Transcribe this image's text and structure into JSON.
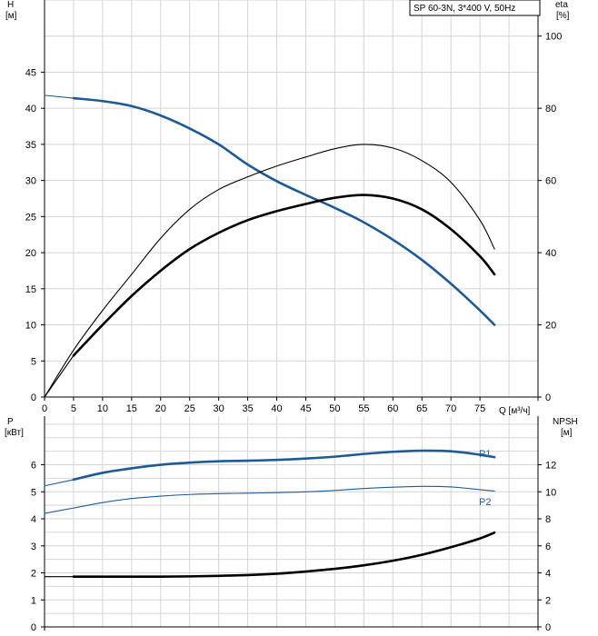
{
  "legend": {
    "text": "SP 60-3N, 3*400 V, 50Hz"
  },
  "x_axis": {
    "label": "Q [м³/ч]",
    "range": [
      0,
      85
    ],
    "ticks": [
      0,
      5,
      10,
      15,
      20,
      25,
      30,
      35,
      40,
      45,
      50,
      55,
      60,
      65,
      70,
      75
    ]
  },
  "top_panel": {
    "left_axis": {
      "label_name": "H",
      "label_unit": "[м]",
      "range": [
        0,
        55
      ],
      "ticks": [
        0,
        5,
        10,
        15,
        20,
        25,
        30,
        35,
        40,
        45
      ]
    },
    "right_axis": {
      "label_name": "eta",
      "label_unit": "[%]",
      "range": [
        0,
        110
      ],
      "ticks": [
        0,
        20,
        40,
        60,
        80,
        100
      ]
    }
  },
  "bottom_panel": {
    "left_axis": {
      "label_name": "P",
      "label_unit": "[кВт]",
      "range": [
        0,
        7.8
      ],
      "ticks": [
        0,
        1,
        2,
        3,
        4,
        5,
        6
      ]
    },
    "right_axis": {
      "label_name": "NPSH",
      "label_unit": "[м]",
      "range": [
        0,
        15.6
      ],
      "ticks": [
        0,
        2,
        4,
        6,
        8,
        10,
        12
      ]
    }
  },
  "colors": {
    "pump_curve": "#1f5a94",
    "efficiency": "#000000",
    "grid": "#d4d4d4"
  },
  "chart_data": [
    {
      "type": "line",
      "panel": "top",
      "series": [
        {
          "axis": "H",
          "style": "thin",
          "values": [
            [
              0,
              41.8
            ],
            [
              5,
              41.4
            ]
          ]
        },
        {
          "axis": "H",
          "style": "thick",
          "values": [
            [
              5,
              41.4
            ],
            [
              10,
              41
            ],
            [
              15,
              40.3
            ],
            [
              20,
              39
            ],
            [
              25,
              37.2
            ],
            [
              30,
              35
            ],
            [
              35,
              32.2
            ],
            [
              40,
              29.9
            ],
            [
              45,
              28
            ],
            [
              50,
              26.2
            ],
            [
              55,
              24.2
            ],
            [
              60,
              21.8
            ],
            [
              65,
              19
            ],
            [
              70,
              15.7
            ],
            [
              75,
              12
            ],
            [
              77.5,
              10
            ]
          ]
        },
        {
          "axis": "eta",
          "style": "thin",
          "values": [
            [
              0,
              0
            ],
            [
              5,
              13
            ],
            [
              10,
              24
            ],
            [
              15,
              34
            ],
            [
              20,
              44
            ],
            [
              25,
              52
            ],
            [
              30,
              57.5
            ],
            [
              35,
              61
            ],
            [
              40,
              64
            ],
            [
              45,
              66.5
            ],
            [
              50,
              68.8
            ],
            [
              55,
              70
            ],
            [
              60,
              69
            ],
            [
              65,
              65.5
            ],
            [
              70,
              59.5
            ],
            [
              75,
              49
            ],
            [
              77.5,
              41
            ]
          ]
        },
        {
          "axis": "eta",
          "style": "thin",
          "values": [
            [
              0,
              0
            ],
            [
              5,
              11.5
            ]
          ]
        },
        {
          "axis": "eta",
          "style": "thick",
          "values": [
            [
              5,
              11.5
            ],
            [
              10,
              20
            ],
            [
              15,
              28
            ],
            [
              20,
              35
            ],
            [
              25,
              41
            ],
            [
              30,
              45.5
            ],
            [
              35,
              49
            ],
            [
              40,
              51.5
            ],
            [
              45,
              53.5
            ],
            [
              50,
              55.2
            ],
            [
              55,
              56
            ],
            [
              60,
              55
            ],
            [
              65,
              52
            ],
            [
              70,
              46.5
            ],
            [
              75,
              39
            ],
            [
              77.5,
              34
            ]
          ]
        }
      ]
    },
    {
      "type": "line",
      "panel": "bottom",
      "series": [
        {
          "name": "P1",
          "axis": "P",
          "style": "thin",
          "values": [
            [
              0,
              5.22
            ],
            [
              5,
              5.45
            ]
          ]
        },
        {
          "name": "P1",
          "axis": "P",
          "style": "thick",
          "values": [
            [
              5,
              5.45
            ],
            [
              10,
              5.7
            ],
            [
              15,
              5.87
            ],
            [
              20,
              6.0
            ],
            [
              25,
              6.08
            ],
            [
              30,
              6.13
            ],
            [
              35,
              6.15
            ],
            [
              40,
              6.18
            ],
            [
              45,
              6.23
            ],
            [
              50,
              6.3
            ],
            [
              55,
              6.4
            ],
            [
              60,
              6.48
            ],
            [
              65,
              6.52
            ],
            [
              70,
              6.5
            ],
            [
              75,
              6.37
            ],
            [
              77.5,
              6.28
            ]
          ]
        },
        {
          "name": "P2",
          "axis": "P",
          "style": "thin",
          "values": [
            [
              0,
              4.2
            ],
            [
              5,
              4.4
            ],
            [
              10,
              4.6
            ],
            [
              15,
              4.75
            ],
            [
              20,
              4.84
            ],
            [
              25,
              4.9
            ],
            [
              30,
              4.93
            ],
            [
              35,
              4.95
            ],
            [
              40,
              4.97
            ],
            [
              45,
              5.0
            ],
            [
              50,
              5.05
            ],
            [
              55,
              5.12
            ],
            [
              60,
              5.17
            ],
            [
              65,
              5.2
            ],
            [
              70,
              5.18
            ],
            [
              75,
              5.08
            ],
            [
              77.5,
              5.03
            ]
          ]
        },
        {
          "axis": "NPSH",
          "style": "thin",
          "values": [
            [
              0,
              3.72
            ],
            [
              5,
              3.72
            ]
          ]
        },
        {
          "axis": "NPSH",
          "style": "thick",
          "values": [
            [
              5,
              3.72
            ],
            [
              10,
              3.72
            ],
            [
              15,
              3.72
            ],
            [
              20,
              3.72
            ],
            [
              25,
              3.74
            ],
            [
              30,
              3.78
            ],
            [
              35,
              3.84
            ],
            [
              40,
              3.94
            ],
            [
              45,
              4.1
            ],
            [
              50,
              4.3
            ],
            [
              55,
              4.56
            ],
            [
              60,
              4.9
            ],
            [
              65,
              5.34
            ],
            [
              70,
              5.9
            ],
            [
              75,
              6.55
            ],
            [
              77.5,
              6.98
            ]
          ]
        }
      ]
    }
  ]
}
